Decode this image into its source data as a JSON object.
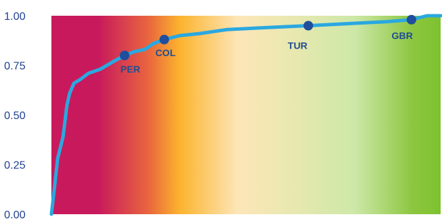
{
  "chart_data": {
    "type": "line",
    "title": "",
    "xlabel": "",
    "ylabel": "",
    "xlim": [
      0,
      1
    ],
    "ylim": [
      0,
      1
    ],
    "y_ticks": [
      "0.00",
      "0.25",
      "0.50",
      "0.75",
      "1.00"
    ],
    "y_tick_values": [
      0,
      0.25,
      0.5,
      0.75,
      1
    ],
    "grid": false,
    "background_gradient": [
      "#c8195c",
      "#c8195c",
      "#e9663e",
      "#fbb42e",
      "#fde6b8",
      "#e8e8b0",
      "#cde8a8",
      "#8cc63f",
      "#7ec22f"
    ],
    "line_color": "#2aa8e0",
    "marker_color": "#1f4e9c",
    "series": [
      {
        "values": [
          {
            "x": 0.0,
            "y": 0.0
          },
          {
            "x": 0.007,
            "y": 0.12
          },
          {
            "x": 0.016,
            "y": 0.28
          },
          {
            "x": 0.03,
            "y": 0.39
          },
          {
            "x": 0.04,
            "y": 0.55
          },
          {
            "x": 0.047,
            "y": 0.61
          },
          {
            "x": 0.058,
            "y": 0.66
          },
          {
            "x": 0.075,
            "y": 0.68
          },
          {
            "x": 0.095,
            "y": 0.71
          },
          {
            "x": 0.125,
            "y": 0.73
          },
          {
            "x": 0.16,
            "y": 0.77
          },
          {
            "x": 0.188,
            "y": 0.8
          },
          {
            "x": 0.215,
            "y": 0.82
          },
          {
            "x": 0.24,
            "y": 0.83
          },
          {
            "x": 0.262,
            "y": 0.86
          },
          {
            "x": 0.29,
            "y": 0.88
          },
          {
            "x": 0.33,
            "y": 0.9
          },
          {
            "x": 0.38,
            "y": 0.91
          },
          {
            "x": 0.45,
            "y": 0.93
          },
          {
            "x": 0.55,
            "y": 0.94
          },
          {
            "x": 0.66,
            "y": 0.95
          },
          {
            "x": 0.76,
            "y": 0.96
          },
          {
            "x": 0.86,
            "y": 0.97
          },
          {
            "x": 0.925,
            "y": 0.98
          },
          {
            "x": 0.965,
            "y": 1.0
          },
          {
            "x": 1.0,
            "y": 1.0
          }
        ]
      }
    ],
    "labeled_points": [
      {
        "label": "PER",
        "x": 0.188,
        "y": 0.8
      },
      {
        "label": "COL",
        "x": 0.29,
        "y": 0.88
      },
      {
        "label": "TUR",
        "x": 0.66,
        "y": 0.95
      },
      {
        "label": "GBR",
        "x": 0.925,
        "y": 0.98
      }
    ]
  }
}
